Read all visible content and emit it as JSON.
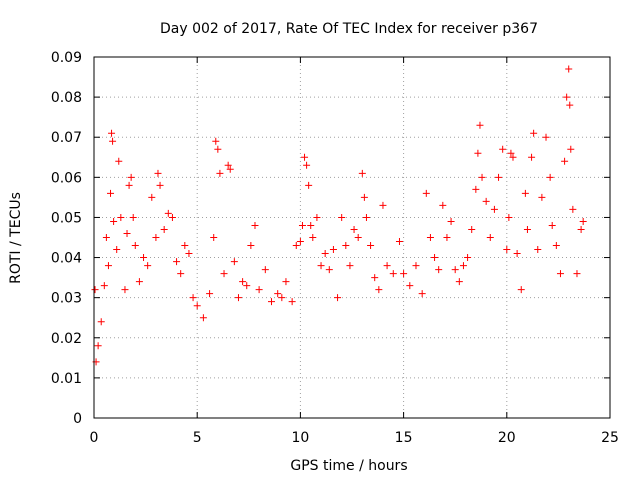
{
  "chart_data": {
    "type": "scatter",
    "title": "Day 002 of 2017, Rate Of TEC Index for receiver p367",
    "xlabel": "GPS time / hours",
    "ylabel": "ROTI / TECUs",
    "xlim": [
      0,
      25
    ],
    "ylim": [
      0,
      0.09
    ],
    "x_ticks": [
      0,
      5,
      10,
      15,
      20,
      25
    ],
    "x_tick_labels": [
      "0",
      "5",
      "10",
      "15",
      "20",
      "25"
    ],
    "y_ticks": [
      0,
      0.01,
      0.02,
      0.03,
      0.04,
      0.05,
      0.06,
      0.07,
      0.08,
      0.09
    ],
    "y_tick_labels": [
      "0",
      "0.01",
      "0.02",
      "0.03",
      "0.04",
      "0.05",
      "0.06",
      "0.07",
      "0.08",
      "0.09"
    ],
    "grid": true,
    "marker": "+",
    "color": "#ff0000",
    "series": [
      {
        "points": [
          [
            0.05,
            0.032
          ],
          [
            0.1,
            0.014
          ],
          [
            0.2,
            0.018
          ],
          [
            0.35,
            0.024
          ],
          [
            0.5,
            0.033
          ],
          [
            0.6,
            0.045
          ],
          [
            0.7,
            0.038
          ],
          [
            0.8,
            0.056
          ],
          [
            0.85,
            0.071
          ],
          [
            0.9,
            0.069
          ],
          [
            0.95,
            0.049
          ],
          [
            1.1,
            0.042
          ],
          [
            1.2,
            0.064
          ],
          [
            1.3,
            0.05
          ],
          [
            1.5,
            0.032
          ],
          [
            1.6,
            0.046
          ],
          [
            1.7,
            0.058
          ],
          [
            1.8,
            0.06
          ],
          [
            1.9,
            0.05
          ],
          [
            2.0,
            0.043
          ],
          [
            2.2,
            0.034
          ],
          [
            2.4,
            0.04
          ],
          [
            2.6,
            0.038
          ],
          [
            2.8,
            0.055
          ],
          [
            3.0,
            0.045
          ],
          [
            3.1,
            0.061
          ],
          [
            3.2,
            0.058
          ],
          [
            3.4,
            0.047
          ],
          [
            3.6,
            0.051
          ],
          [
            3.8,
            0.05
          ],
          [
            4.0,
            0.039
          ],
          [
            4.2,
            0.036
          ],
          [
            4.4,
            0.043
          ],
          [
            4.6,
            0.041
          ],
          [
            4.8,
            0.03
          ],
          [
            5.0,
            0.028
          ],
          [
            5.3,
            0.025
          ],
          [
            5.6,
            0.031
          ],
          [
            5.8,
            0.045
          ],
          [
            5.9,
            0.069
          ],
          [
            6.0,
            0.067
          ],
          [
            6.1,
            0.061
          ],
          [
            6.3,
            0.036
          ],
          [
            6.5,
            0.063
          ],
          [
            6.6,
            0.062
          ],
          [
            6.8,
            0.039
          ],
          [
            7.0,
            0.03
          ],
          [
            7.2,
            0.034
          ],
          [
            7.4,
            0.033
          ],
          [
            7.6,
            0.043
          ],
          [
            7.8,
            0.048
          ],
          [
            8.0,
            0.032
          ],
          [
            8.3,
            0.037
          ],
          [
            8.6,
            0.029
          ],
          [
            8.9,
            0.031
          ],
          [
            9.1,
            0.03
          ],
          [
            9.3,
            0.034
          ],
          [
            9.6,
            0.029
          ],
          [
            9.8,
            0.043
          ],
          [
            10.0,
            0.044
          ],
          [
            10.1,
            0.048
          ],
          [
            10.2,
            0.065
          ],
          [
            10.3,
            0.063
          ],
          [
            10.4,
            0.058
          ],
          [
            10.5,
            0.048
          ],
          [
            10.6,
            0.045
          ],
          [
            10.8,
            0.05
          ],
          [
            11.0,
            0.038
          ],
          [
            11.2,
            0.041
          ],
          [
            11.4,
            0.037
          ],
          [
            11.6,
            0.042
          ],
          [
            11.8,
            0.03
          ],
          [
            12.0,
            0.05
          ],
          [
            12.2,
            0.043
          ],
          [
            12.4,
            0.038
          ],
          [
            12.6,
            0.047
          ],
          [
            12.8,
            0.045
          ],
          [
            13.0,
            0.061
          ],
          [
            13.1,
            0.055
          ],
          [
            13.2,
            0.05
          ],
          [
            13.4,
            0.043
          ],
          [
            13.6,
            0.035
          ],
          [
            13.8,
            0.032
          ],
          [
            14.0,
            0.053
          ],
          [
            14.2,
            0.038
          ],
          [
            14.5,
            0.036
          ],
          [
            14.8,
            0.044
          ],
          [
            15.0,
            0.036
          ],
          [
            15.3,
            0.033
          ],
          [
            15.6,
            0.038
          ],
          [
            15.9,
            0.031
          ],
          [
            16.1,
            0.056
          ],
          [
            16.3,
            0.045
          ],
          [
            16.5,
            0.04
          ],
          [
            16.7,
            0.037
          ],
          [
            16.9,
            0.053
          ],
          [
            17.1,
            0.045
          ],
          [
            17.3,
            0.049
          ],
          [
            17.5,
            0.037
          ],
          [
            17.7,
            0.034
          ],
          [
            17.9,
            0.038
          ],
          [
            18.1,
            0.04
          ],
          [
            18.3,
            0.047
          ],
          [
            18.5,
            0.057
          ],
          [
            18.6,
            0.066
          ],
          [
            18.7,
            0.073
          ],
          [
            18.8,
            0.06
          ],
          [
            19.0,
            0.054
          ],
          [
            19.2,
            0.045
          ],
          [
            19.4,
            0.052
          ],
          [
            19.6,
            0.06
          ],
          [
            19.8,
            0.067
          ],
          [
            20.0,
            0.042
          ],
          [
            20.1,
            0.05
          ],
          [
            20.2,
            0.066
          ],
          [
            20.3,
            0.065
          ],
          [
            20.5,
            0.041
          ],
          [
            20.7,
            0.032
          ],
          [
            20.9,
            0.056
          ],
          [
            21.0,
            0.047
          ],
          [
            21.2,
            0.065
          ],
          [
            21.3,
            0.071
          ],
          [
            21.5,
            0.042
          ],
          [
            21.7,
            0.055
          ],
          [
            21.9,
            0.07
          ],
          [
            22.1,
            0.06
          ],
          [
            22.2,
            0.048
          ],
          [
            22.4,
            0.043
          ],
          [
            22.6,
            0.036
          ],
          [
            22.8,
            0.064
          ],
          [
            22.9,
            0.08
          ],
          [
            23.0,
            0.087
          ],
          [
            23.05,
            0.078
          ],
          [
            23.1,
            0.067
          ],
          [
            23.2,
            0.052
          ],
          [
            23.4,
            0.036
          ],
          [
            23.6,
            0.047
          ],
          [
            23.7,
            0.049
          ]
        ]
      }
    ]
  }
}
